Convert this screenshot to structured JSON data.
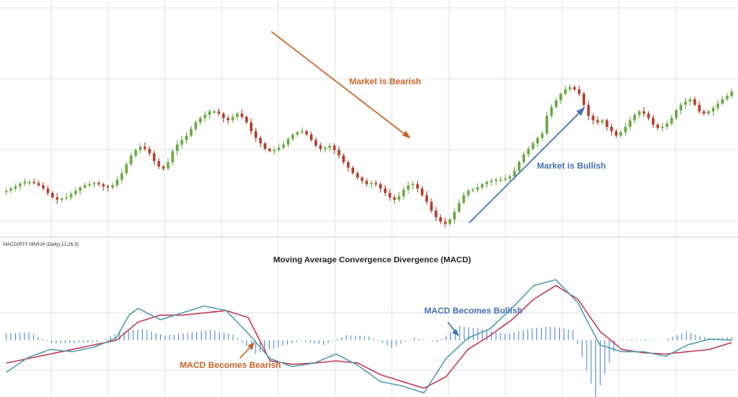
{
  "colors": {
    "bull": "#6aaa44",
    "bear": "#b5402e",
    "macd_line": "#4a9aa6",
    "signal_line": "#c0334e",
    "histogram": "#5b90cf",
    "bearish_text": "#c8652a",
    "bullish_text": "#4672b7",
    "grid": "#e4e4e4"
  },
  "chart_data": [
    {
      "type": "candlestick",
      "title": "",
      "series": [
        {
          "name": "",
          "close": [
            50.0,
            51.0,
            52.0,
            53.3,
            54.0,
            54.0,
            53.5,
            52.5,
            51.0,
            49.0,
            47.0,
            46.0,
            46.5,
            47.0,
            48.5,
            50.0,
            51.5,
            52.5,
            53.0,
            53.5,
            53.0,
            52.0,
            51.5,
            52.5,
            55.0,
            58.0,
            62.0,
            66.0,
            68.5,
            70.0,
            69.0,
            67.0,
            63.5,
            61.0,
            60.0,
            63.0,
            68.0,
            71.0,
            73.0,
            75.0,
            78.0,
            81.0,
            83.0,
            84.5,
            86.0,
            86.0,
            85.0,
            83.0,
            82.0,
            83.5,
            85.0,
            83.5,
            81.0,
            77.0,
            74.0,
            71.5,
            69.0,
            68.0,
            68.5,
            69.5,
            71.0,
            73.5,
            75.5,
            76.5,
            77.0,
            75.5,
            73.0,
            70.5,
            69.0,
            69.5,
            70.5,
            68.5,
            66.0,
            63.0,
            60.5,
            58.0,
            56.0,
            54.5,
            53.0,
            53.5,
            53.0,
            51.0,
            49.0,
            47.0,
            46.0,
            47.5,
            50.5,
            52.5,
            53.0,
            51.0,
            48.0,
            45.0,
            41.0,
            38.0,
            36.0,
            35.0,
            37.0,
            40.5,
            44.5,
            48.0,
            50.0,
            50.5,
            51.5,
            53.0,
            54.0,
            54.5,
            55.0,
            55.0,
            55.5,
            56.5,
            59.0,
            63.0,
            66.5,
            69.0,
            71.5,
            74.0,
            76.0,
            84.0,
            88.0,
            91.0,
            94.0,
            96.0,
            97.0,
            96.0,
            94.0,
            89.0,
            84.0,
            82.0,
            81.0,
            82.0,
            79.0,
            77.0,
            75.0,
            76.5,
            79.0,
            82.0,
            84.5,
            86.0,
            85.0,
            83.0,
            80.0,
            78.5,
            79.0,
            80.5,
            83.0,
            86.5,
            89.0,
            90.5,
            91.5,
            89.0,
            86.0,
            85.0,
            86.0,
            87.5,
            89.5,
            91.5,
            93.0,
            95.0
          ]
        }
      ],
      "annotations": [
        {
          "text": "Market is Bearish",
          "direction": "down"
        },
        {
          "text": "Market is Bullish",
          "direction": "up"
        }
      ]
    },
    {
      "type": "line",
      "title": "Moving Average Convergence Divergence (MACD)",
      "indicator_label": "MACD(RTY MAR24 (Daily),12,26,9)",
      "series": [
        {
          "name": "",
          "style": "line",
          "values": [
            -1.4,
            -1.27,
            -1.14,
            -1.01,
            -0.88,
            -0.75,
            -0.68,
            -0.61,
            -0.54,
            -0.47,
            -0.4,
            -0.42,
            -0.44,
            -0.46,
            -0.48,
            -0.5,
            -0.46,
            -0.42,
            -0.38,
            -0.34,
            -0.3,
            -0.22,
            -0.14,
            -0.06,
            0.02,
            0.1,
            0.44,
            0.78,
            1.12,
            1.26,
            1.4,
            1.3,
            1.2,
            1.1,
            1.0,
            0.9,
            0.96,
            1.02,
            1.08,
            1.14,
            1.2,
            1.26,
            1.32,
            1.38,
            1.44,
            1.5,
            1.46,
            1.42,
            1.38,
            1.34,
            1.3,
            1.1,
            0.9,
            0.7,
            0.5,
            0.3,
            0.08,
            -0.14,
            -0.36,
            -0.58,
            -0.8,
            -0.87,
            -0.94,
            -1.01,
            -1.08,
            -1.15,
            -1.12,
            -1.09,
            -1.06,
            -1.03,
            -1.0,
            -0.92,
            -0.84,
            -0.76,
            -0.68,
            -0.6,
            -0.7,
            -0.8,
            -0.9,
            -1.0,
            -1.1,
            -1.24,
            -1.38,
            -1.52,
            -1.66,
            -1.8,
            -1.84,
            -1.88,
            -1.92,
            -1.96,
            -2.0,
            -2.06,
            -2.12,
            -2.18,
            -2.24,
            -2.3,
            -2.0,
            -1.7,
            -1.4,
            -1.1,
            -0.8,
            -0.62,
            -0.44,
            -0.26,
            -0.08,
            0.1,
            0.18,
            0.26,
            0.34,
            0.42,
            0.5,
            0.68,
            0.86,
            1.04,
            1.22,
            1.4,
            1.6,
            1.8,
            2.0,
            2.2,
            2.4,
            2.45,
            2.5,
            2.55,
            2.6,
            2.65,
            2.45,
            2.25,
            2.05,
            1.85,
            1.65,
            1.28,
            0.9,
            0.53,
            0.16,
            -0.2,
            -0.26,
            -0.32,
            -0.38,
            -0.44,
            -0.5,
            -0.5,
            -0.5,
            -0.5,
            -0.5,
            -0.5,
            -0.54,
            -0.58,
            -0.62,
            -0.66,
            -0.7,
            -0.6,
            -0.5,
            -0.4,
            -0.3,
            -0.2,
            -0.15,
            -0.1,
            -0.05,
            0.0,
            0.05,
            0.04,
            0.03,
            0.02,
            0.01,
            0.0
          ]
        },
        {
          "name": "",
          "style": "line",
          "values": [
            -1.0,
            -0.96,
            -0.92,
            -0.88,
            -0.84,
            -0.8,
            -0.76,
            -0.72,
            -0.68,
            -0.64,
            -0.6,
            -0.56,
            -0.52,
            -0.48,
            -0.44,
            -0.4,
            -0.36,
            -0.32,
            -0.28,
            -0.24,
            -0.2,
            -0.16,
            -0.12,
            -0.08,
            -0.04,
            0.0,
            0.16,
            0.32,
            0.48,
            0.64,
            0.8,
            0.86,
            0.92,
            0.98,
            1.04,
            1.1,
            1.1,
            1.1,
            1.1,
            1.1,
            1.1,
            1.12,
            1.14,
            1.16,
            1.18,
            1.2,
            1.22,
            1.24,
            1.26,
            1.28,
            1.3,
            1.24,
            1.18,
            1.12,
            1.06,
            1.0,
            0.62,
            0.24,
            -0.14,
            -0.52,
            -0.9,
            -0.93,
            -0.96,
            -0.99,
            -1.02,
            -1.05,
            -1.04,
            -1.03,
            -1.02,
            -1.01,
            -1.0,
            -0.98,
            -0.96,
            -0.94,
            -0.92,
            -0.9,
            -0.92,
            -0.94,
            -0.96,
            -0.98,
            -1.0,
            -1.1,
            -1.2,
            -1.3,
            -1.4,
            -1.5,
            -1.56,
            -1.62,
            -1.68,
            -1.74,
            -1.8,
            -1.86,
            -1.92,
            -1.98,
            -2.04,
            -2.1,
            -2.0,
            -1.9,
            -1.8,
            -1.7,
            -1.6,
            -1.36,
            -1.12,
            -0.88,
            -0.64,
            -0.4,
            -0.28,
            -0.16,
            -0.04,
            0.08,
            0.2,
            0.34,
            0.48,
            0.62,
            0.76,
            0.9,
            1.08,
            1.26,
            1.44,
            1.62,
            1.8,
            1.92,
            2.04,
            2.16,
            2.28,
            2.4,
            2.28,
            2.16,
            2.04,
            1.92,
            1.8,
            1.52,
            1.24,
            0.96,
            0.68,
            0.4,
            0.24,
            0.08,
            -0.08,
            -0.24,
            -0.4,
            -0.43,
            -0.46,
            -0.49,
            -0.52,
            -0.55,
            -0.56,
            -0.57,
            -0.58,
            -0.59,
            -0.6,
            -0.58,
            -0.56,
            -0.54,
            -0.52,
            -0.5,
            -0.48,
            -0.46,
            -0.44,
            -0.42,
            -0.4,
            -0.34,
            -0.28,
            -0.22,
            -0.16,
            -0.1
          ]
        },
        {
          "name": "",
          "style": "histogram",
          "values": [
            0.3,
            0.31,
            0.32,
            0.33,
            0.34,
            0.35,
            0.25,
            0.16,
            0.06,
            -0.03,
            -0.13,
            -0.13,
            -0.13,
            -0.12,
            -0.12,
            -0.12,
            -0.11,
            -0.11,
            -0.1,
            -0.09,
            -0.09,
            0.0,
            0.09,
            0.17,
            0.26,
            0.35,
            0.38,
            0.41,
            0.44,
            0.47,
            0.5,
            0.44,
            0.38,
            0.32,
            0.26,
            0.2,
            0.23,
            0.25,
            0.28,
            0.3,
            0.33,
            0.35,
            0.38,
            0.4,
            0.43,
            0.45,
            0.41,
            0.37,
            0.33,
            0.29,
            0.25,
            0.08,
            -0.09,
            -0.25,
            -0.42,
            -0.59,
            -0.53,
            -0.46,
            -0.4,
            -0.34,
            -0.28,
            -0.23,
            -0.18,
            -0.13,
            -0.08,
            -0.03,
            -0.07,
            -0.1,
            -0.14,
            -0.17,
            -0.21,
            -0.12,
            -0.03,
            0.06,
            0.14,
            0.23,
            0.22,
            0.21,
            0.19,
            0.18,
            0.17,
            0.07,
            -0.03,
            -0.12,
            -0.22,
            -0.32,
            -0.23,
            -0.15,
            -0.06,
            0.02,
            0.11,
            0.07,
            0.03,
            0.0,
            -0.04,
            -0.08,
            0.06,
            0.2,
            0.34,
            0.48,
            0.62,
            0.59,
            0.57,
            0.54,
            0.52,
            0.49,
            0.44,
            0.4,
            0.35,
            0.31,
            0.26,
            0.31,
            0.35,
            0.4,
            0.44,
            0.49,
            0.51,
            0.54,
            0.56,
            0.59,
            0.61,
            0.58,
            0.55,
            0.51,
            0.48,
            0.45,
            -0.14,
            -0.72,
            -1.31,
            -1.89,
            -2.48,
            -1.98,
            -1.48,
            -0.98,
            -0.48,
            0.02,
            0.03,
            0.03,
            0.04,
            0.04,
            0.05,
            0.04,
            0.03,
            0.02,
            0.01,
            0.0,
            0.08,
            0.15,
            0.23,
            0.3,
            0.38,
            0.32,
            0.26,
            0.2,
            0.14,
            0.08,
            0.09,
            0.1,
            0.12,
            0.13,
            0.14
          ]
        }
      ],
      "annotations": [
        {
          "text": "MACD Becomes Bearish",
          "direction": "up"
        },
        {
          "text": "MACD Becomes Bullish",
          "direction": "down"
        }
      ]
    }
  ]
}
